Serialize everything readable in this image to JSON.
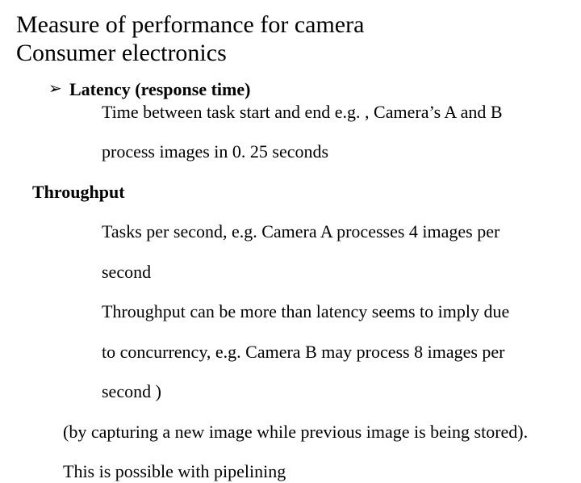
{
  "title": {
    "line1": "Measure of performance for camera",
    "line2": "Consumer electronics"
  },
  "bullet": {
    "marker": "➢"
  },
  "latency": {
    "heading": "Latency (response time)",
    "line1": "Time between task start and end e.g. , Camera’s A and B",
    "line2": "process images in 0. 25 seconds"
  },
  "throughput": {
    "heading": "Throughput",
    "line1": "Tasks per second, e.g. Camera A processes 4 images per",
    "line2": "second",
    "line3": "Throughput can be more than latency seems to imply due",
    "line4": "to concurrency, e.g. Camera B may process 8 images per",
    "line5": "second )",
    "line6": "(by capturing a new image while previous image is being stored).",
    "line7": "This is possible with pipelining"
  },
  "colors": {
    "text": "#000000",
    "background": "#ffffff"
  },
  "typography": {
    "font_family": "Times New Roman",
    "title_fontsize_pt": 22,
    "body_fontsize_pt": 16,
    "heading_weight": "bold"
  }
}
